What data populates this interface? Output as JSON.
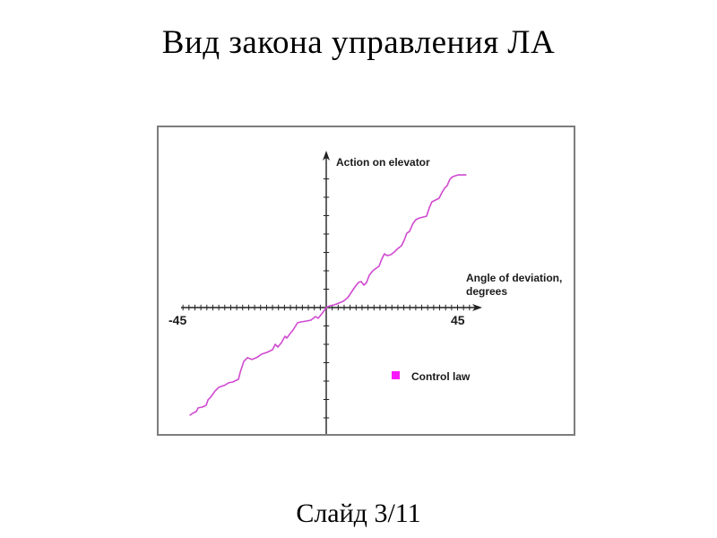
{
  "slide": {
    "title": "Вид закона управления ЛА",
    "footer": "Слайд 3/11"
  },
  "chart_data": {
    "type": "line",
    "title": "",
    "ylabel": "Action on elevator",
    "xlabel_line1": "Angle of deviation,",
    "xlabel_line2": "degrees",
    "x_min_label": "-45",
    "x_max_label": "45",
    "xlim": [
      -48,
      48
    ],
    "ylim": [
      -40,
      48
    ],
    "x_tick_step_degrees": 2,
    "y_tick_count": 13,
    "grid": false,
    "legend_position": "lower-right-quadrant",
    "legend": [
      {
        "label": "Control law",
        "marker_color": "#fa18fa"
      }
    ],
    "series": [
      {
        "name": "Control law",
        "color": "#d04ad0",
        "points": [
          [
            -45.6,
            -36.0
          ],
          [
            -44.7,
            -35.4
          ],
          [
            -43.5,
            -34.8
          ],
          [
            -42.9,
            -33.6
          ],
          [
            -41.4,
            -33.3
          ],
          [
            -40.2,
            -32.7
          ],
          [
            -39.6,
            -30.9
          ],
          [
            -38.7,
            -30.0
          ],
          [
            -37.2,
            -27.9
          ],
          [
            -36.0,
            -26.7
          ],
          [
            -34.2,
            -26.1
          ],
          [
            -32.7,
            -25.2
          ],
          [
            -31.2,
            -24.9
          ],
          [
            -29.4,
            -24.0
          ],
          [
            -28.8,
            -21.6
          ],
          [
            -27.6,
            -18.0
          ],
          [
            -26.4,
            -16.8
          ],
          [
            -24.9,
            -17.4
          ],
          [
            -23.4,
            -16.8
          ],
          [
            -21.6,
            -15.6
          ],
          [
            -19.8,
            -15.0
          ],
          [
            -18.0,
            -14.1
          ],
          [
            -17.1,
            -12.3
          ],
          [
            -16.2,
            -13.2
          ],
          [
            -15.0,
            -11.7
          ],
          [
            -13.8,
            -9.6
          ],
          [
            -13.2,
            -10.2
          ],
          [
            -12.3,
            -9.0
          ],
          [
            -11.1,
            -7.5
          ],
          [
            -9.6,
            -5.1
          ],
          [
            -8.4,
            -4.8
          ],
          [
            -6.6,
            -4.5
          ],
          [
            -5.1,
            -4.2
          ],
          [
            -3.6,
            -3.0
          ],
          [
            -2.7,
            -3.6
          ],
          [
            -1.5,
            -2.1
          ],
          [
            -0.6,
            -0.9
          ],
          [
            0.0,
            0.0
          ],
          [
            1.2,
            0.6
          ],
          [
            2.7,
            0.9
          ],
          [
            4.2,
            1.5
          ],
          [
            5.7,
            2.1
          ],
          [
            7.2,
            3.3
          ],
          [
            8.4,
            5.1
          ],
          [
            9.6,
            6.9
          ],
          [
            10.8,
            8.4
          ],
          [
            11.7,
            8.7
          ],
          [
            12.6,
            7.5
          ],
          [
            13.5,
            8.4
          ],
          [
            14.4,
            10.8
          ],
          [
            15.6,
            12.3
          ],
          [
            16.8,
            13.2
          ],
          [
            17.7,
            13.8
          ],
          [
            18.6,
            16.2
          ],
          [
            19.5,
            18.0
          ],
          [
            20.4,
            17.4
          ],
          [
            21.6,
            17.7
          ],
          [
            22.8,
            18.6
          ],
          [
            24.0,
            19.8
          ],
          [
            25.2,
            20.7
          ],
          [
            26.1,
            22.5
          ],
          [
            27.0,
            24.9
          ],
          [
            27.9,
            25.5
          ],
          [
            29.1,
            28.2
          ],
          [
            30.0,
            29.4
          ],
          [
            31.2,
            30.0
          ],
          [
            32.4,
            30.3
          ],
          [
            33.6,
            30.6
          ],
          [
            34.5,
            33.3
          ],
          [
            35.4,
            35.4
          ],
          [
            36.6,
            36.0
          ],
          [
            37.8,
            36.6
          ],
          [
            38.7,
            38.4
          ],
          [
            39.6,
            39.9
          ],
          [
            40.5,
            40.8
          ],
          [
            41.4,
            42.9
          ],
          [
            42.3,
            43.8
          ],
          [
            43.2,
            44.1
          ],
          [
            44.1,
            44.4
          ],
          [
            45.3,
            44.4
          ],
          [
            46.8,
            44.4
          ]
        ]
      }
    ]
  }
}
